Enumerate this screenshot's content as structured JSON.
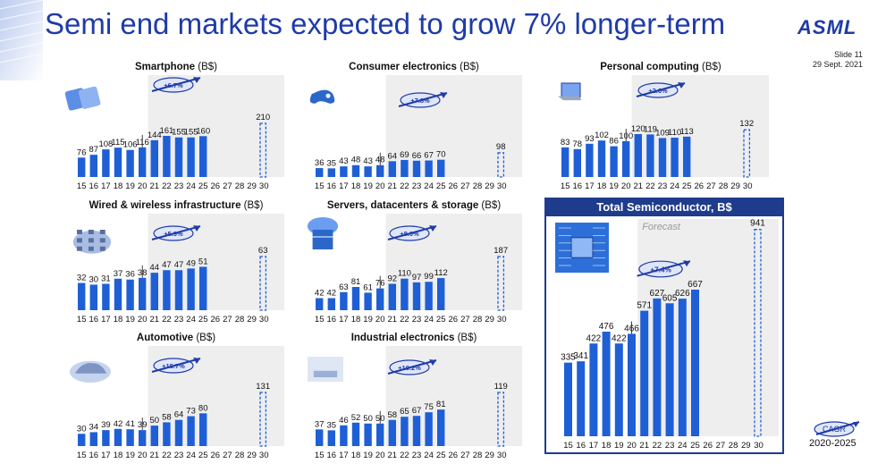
{
  "slide": {
    "title": "Semi end markets expected to grow 7% longer-term",
    "logo": "ASML",
    "slide_number": "Slide 11",
    "date": "29 Sept. 2021",
    "cagr_label": "CAGR",
    "cagr_years": "2020-2025"
  },
  "colors": {
    "bar": "#1f5fd6",
    "accent": "#1f3ba8",
    "shade": "#eeeeee",
    "header": "#1f3b8c"
  },
  "x_labels": [
    "15",
    "16",
    "17",
    "18",
    "19",
    "20",
    "21",
    "22",
    "23",
    "24",
    "25",
    "26",
    "27",
    "28",
    "29",
    "30"
  ],
  "chart_data": [
    {
      "id": "smartphone",
      "type": "bar",
      "title": "Smartphone",
      "unit": "(B$)",
      "cagr": "+6.7%",
      "icon": "smartphone-icon",
      "values": [
        76,
        87,
        108,
        115,
        106,
        116,
        144,
        161,
        155,
        155,
        160
      ],
      "forecast_2030": 210
    },
    {
      "id": "consumer",
      "type": "bar",
      "title": "Consumer electronics",
      "unit": "(B$)",
      "cagr": "+7.8%",
      "icon": "game-controller-icon",
      "values": [
        36,
        35,
        43,
        48,
        43,
        48,
        64,
        69,
        66,
        67,
        70
      ],
      "forecast_2030": 98
    },
    {
      "id": "pc",
      "type": "bar",
      "title": "Personal computing",
      "unit": "(B$)",
      "cagr": "+2.6%",
      "icon": "laptop-icon",
      "values": [
        83,
        78,
        93,
        102,
        86,
        100,
        120,
        119,
        109,
        110,
        113
      ],
      "forecast_2030": 132
    },
    {
      "id": "wired",
      "type": "bar",
      "title": "Wired & wireless infrastructure",
      "unit": "(B$)",
      "cagr": "+5.9%",
      "icon": "cloud-network-icon",
      "values": [
        32,
        30,
        31,
        37,
        36,
        38,
        44,
        47,
        47,
        49,
        51
      ],
      "forecast_2030": 63
    },
    {
      "id": "servers",
      "type": "bar",
      "title": "Servers, datacenters & storage",
      "unit": "(B$)",
      "cagr": "+8.0%",
      "icon": "datacenter-icon",
      "values": [
        42,
        42,
        63,
        81,
        61,
        76,
        92,
        110,
        97,
        99,
        112
      ],
      "forecast_2030": 187
    },
    {
      "id": "auto",
      "type": "bar",
      "title": "Automotive",
      "unit": "(B$)",
      "cagr": "+15.7%",
      "icon": "car-icon",
      "values": [
        30,
        34,
        39,
        42,
        41,
        39,
        50,
        58,
        64,
        73,
        80
      ],
      "forecast_2030": 131
    },
    {
      "id": "industrial",
      "type": "bar",
      "title": "Industrial electronics",
      "unit": "(B$)",
      "cagr": "+10.2%",
      "icon": "internet-of-things-icon",
      "values": [
        37,
        35,
        46,
        52,
        50,
        50,
        58,
        65,
        67,
        75,
        81
      ],
      "forecast_2030": 119
    },
    {
      "id": "total",
      "type": "bar",
      "title": "Total Semiconductor, B$",
      "unit": "",
      "cagr": "+7.4%",
      "icon": "chip-icon",
      "forecast_label": "Forecast",
      "values": [
        335,
        341,
        422,
        476,
        422,
        466,
        571,
        627,
        605,
        626,
        667
      ],
      "forecast_2030": 941
    }
  ]
}
